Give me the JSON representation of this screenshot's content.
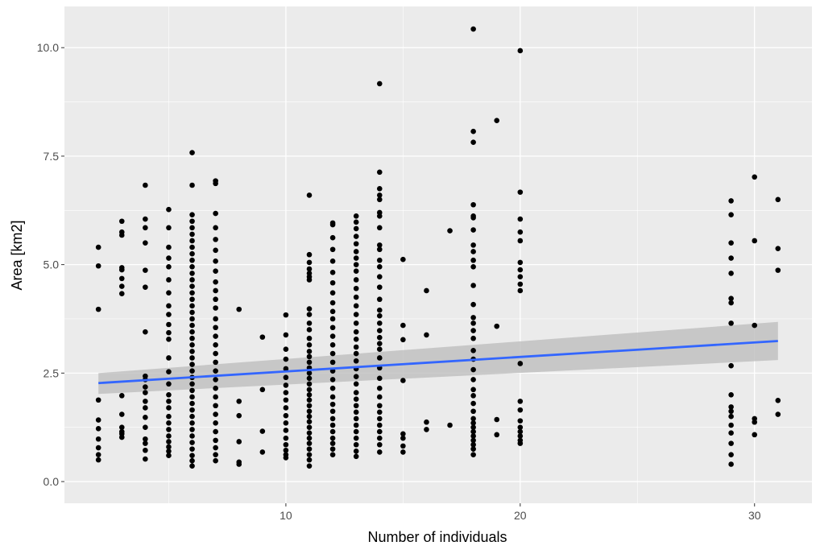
{
  "colors": {
    "panel_background": "#ebebeb",
    "grid_major": "#ffffff",
    "point": "#000000",
    "fit_line": "#3366ff",
    "ribbon": "#bebebe"
  },
  "chart_data": {
    "type": "scatter",
    "title": "",
    "xlabel": "Number of individuals",
    "ylabel": "Area [km2]",
    "xlim": [
      0.55,
      32.45
    ],
    "ylim": [
      -0.5,
      10.95
    ],
    "x_ticks": [
      10,
      20,
      30
    ],
    "x_tick_labels": [
      "10",
      "20",
      "30"
    ],
    "y_ticks": [
      0,
      2.5,
      5,
      7.5,
      10
    ],
    "y_tick_labels": [
      "0.0",
      "2.5",
      "5.0",
      "7.5",
      "10.0"
    ],
    "grid": true,
    "legend": "none",
    "columns": [
      {
        "x": 2,
        "y": [
          5.4,
          4.97,
          3.97,
          1.88,
          1.42,
          1.22,
          0.98,
          0.78,
          0.62,
          0.5
        ]
      },
      {
        "x": 3,
        "y": [
          6.0,
          5.75,
          5.68,
          4.93,
          4.88,
          4.68,
          4.5,
          4.33,
          1.98,
          1.55,
          1.25,
          1.15,
          1.1,
          1.02
        ]
      },
      {
        "x": 4,
        "y": [
          6.83,
          6.05,
          5.85,
          5.5,
          4.87,
          4.48,
          3.45,
          2.43,
          2.35,
          2.18,
          2.05,
          1.85,
          1.7,
          1.48,
          1.25,
          0.98,
          0.88,
          0.72,
          0.52
        ]
      },
      {
        "x": 5,
        "y": [
          6.27,
          5.85,
          5.4,
          5.15,
          4.95,
          4.65,
          4.35,
          4.05,
          3.85,
          3.62,
          3.43,
          3.28,
          2.85,
          2.53,
          2.25,
          2.0,
          1.85,
          1.7,
          1.5,
          1.35,
          1.2,
          1.05,
          0.92,
          0.8,
          0.7,
          0.6
        ]
      },
      {
        "x": 6,
        "y": [
          7.58,
          6.83,
          6.15,
          6.0,
          5.85,
          5.7,
          5.55,
          5.4,
          5.25,
          5.1,
          4.95,
          4.8,
          4.65,
          4.5,
          4.35,
          4.2,
          4.05,
          3.9,
          3.75,
          3.6,
          3.45,
          3.3,
          3.15,
          3.0,
          2.85,
          2.7,
          2.55,
          2.4,
          2.25,
          2.1,
          1.95,
          1.8,
          1.65,
          1.5,
          1.35,
          1.2,
          1.05,
          0.9,
          0.75,
          0.6,
          0.48,
          0.36
        ]
      },
      {
        "x": 7,
        "y": [
          6.93,
          6.87,
          6.18,
          5.85,
          5.58,
          5.33,
          5.08,
          4.85,
          4.6,
          4.4,
          4.2,
          4.0,
          3.75,
          3.55,
          3.35,
          3.15,
          2.95,
          2.75,
          2.55,
          2.35,
          2.15,
          1.95,
          1.75,
          1.55,
          1.35,
          1.15,
          0.95,
          0.78,
          0.62,
          0.48
        ]
      },
      {
        "x": 8,
        "y": [
          3.97,
          1.85,
          1.52,
          0.92,
          0.45,
          0.4
        ]
      },
      {
        "x": 9,
        "y": [
          3.33,
          2.12,
          1.16,
          0.68
        ]
      },
      {
        "x": 10,
        "y": [
          3.84,
          3.38,
          3.05,
          2.82,
          2.6,
          2.4,
          2.22,
          2.05,
          1.88,
          1.7,
          1.52,
          1.35,
          1.18,
          1.0,
          0.85,
          0.72,
          0.62,
          0.55
        ]
      },
      {
        "x": 11,
        "y": [
          6.6,
          5.23,
          5.05,
          4.9,
          4.8,
          4.72,
          4.65,
          3.98,
          3.85,
          3.65,
          3.5,
          3.3,
          3.15,
          3.0,
          2.88,
          2.75,
          2.62,
          2.5,
          2.38,
          2.25,
          2.12,
          2.0,
          1.88,
          1.75,
          1.62,
          1.5,
          1.38,
          1.25,
          1.12,
          1.0,
          0.88,
          0.75,
          0.62,
          0.5,
          0.36
        ]
      },
      {
        "x": 12,
        "y": [
          5.96,
          5.92,
          5.62,
          5.35,
          5.08,
          4.82,
          4.58,
          4.35,
          4.12,
          3.92,
          3.75,
          3.55,
          3.35,
          3.15,
          2.95,
          2.75,
          2.55,
          2.35,
          2.15,
          1.95,
          1.78,
          1.62,
          1.45,
          1.3,
          1.15,
          1.0,
          0.88,
          0.75,
          0.62
        ]
      },
      {
        "x": 13,
        "y": [
          6.12,
          5.98,
          5.83,
          5.65,
          5.48,
          5.3,
          5.15,
          5.0,
          4.85,
          4.65,
          4.45,
          4.25,
          4.05,
          3.85,
          3.65,
          3.45,
          3.28,
          3.1,
          2.95,
          2.78,
          2.6,
          2.42,
          2.25,
          2.05,
          1.9,
          1.75,
          1.6,
          1.45,
          1.3,
          1.15,
          1.0,
          0.85,
          0.7,
          0.58
        ]
      },
      {
        "x": 14,
        "y": [
          9.17,
          7.13,
          6.75,
          6.6,
          6.5,
          6.2,
          6.12,
          5.85,
          5.45,
          5.35,
          5.1,
          4.95,
          4.72,
          4.48,
          4.2,
          3.95,
          3.82,
          3.65,
          3.48,
          3.32,
          3.18,
          3.05,
          2.85,
          2.62,
          2.38,
          2.15,
          1.95,
          1.75,
          1.6,
          1.45,
          1.3,
          1.15,
          1.0,
          0.85,
          0.68
        ]
      },
      {
        "x": 15,
        "y": [
          5.12,
          3.6,
          3.27,
          2.33,
          1.1,
          1.0,
          0.82,
          0.68
        ]
      },
      {
        "x": 16,
        "y": [
          4.4,
          3.38,
          1.37,
          1.2
        ]
      },
      {
        "x": 17,
        "y": [
          5.78,
          1.3
        ]
      },
      {
        "x": 18,
        "y": [
          10.43,
          8.07,
          7.82,
          6.38,
          6.12,
          6.08,
          5.8,
          5.45,
          5.3,
          5.1,
          4.95,
          4.52,
          4.08,
          3.78,
          3.65,
          3.48,
          3.3,
          3.02,
          2.82,
          2.58,
          2.35,
          2.12,
          1.98,
          1.8,
          1.62,
          1.45,
          1.35,
          1.25,
          1.15,
          1.05,
          0.95,
          0.85,
          0.75,
          0.62
        ]
      },
      {
        "x": 19,
        "y": [
          8.32,
          3.58,
          1.43,
          1.08
        ]
      },
      {
        "x": 20,
        "y": [
          9.93,
          6.67,
          6.05,
          5.75,
          5.55,
          5.05,
          4.88,
          4.72,
          4.55,
          4.4,
          2.72,
          1.85,
          1.65,
          1.4,
          1.25,
          1.15,
          1.05,
          0.95,
          0.88
        ]
      },
      {
        "x": 29,
        "y": [
          6.47,
          6.15,
          5.5,
          5.15,
          4.8,
          4.22,
          4.12,
          3.65,
          2.67,
          2.0,
          1.72,
          1.62,
          1.5,
          1.3,
          1.12,
          0.88,
          0.62,
          0.4
        ]
      },
      {
        "x": 30,
        "y": [
          7.02,
          5.55,
          3.6,
          1.45,
          1.37,
          1.08
        ]
      },
      {
        "x": 31,
        "y": [
          6.5,
          5.37,
          4.87,
          1.87,
          1.55
        ]
      }
    ],
    "fit": {
      "method": "lm",
      "x": [
        2,
        31
      ],
      "y": [
        2.27,
        3.24
      ],
      "ci_lower": [
        2.02,
        2.8
      ],
      "ci_upper": [
        2.5,
        3.68
      ]
    }
  }
}
